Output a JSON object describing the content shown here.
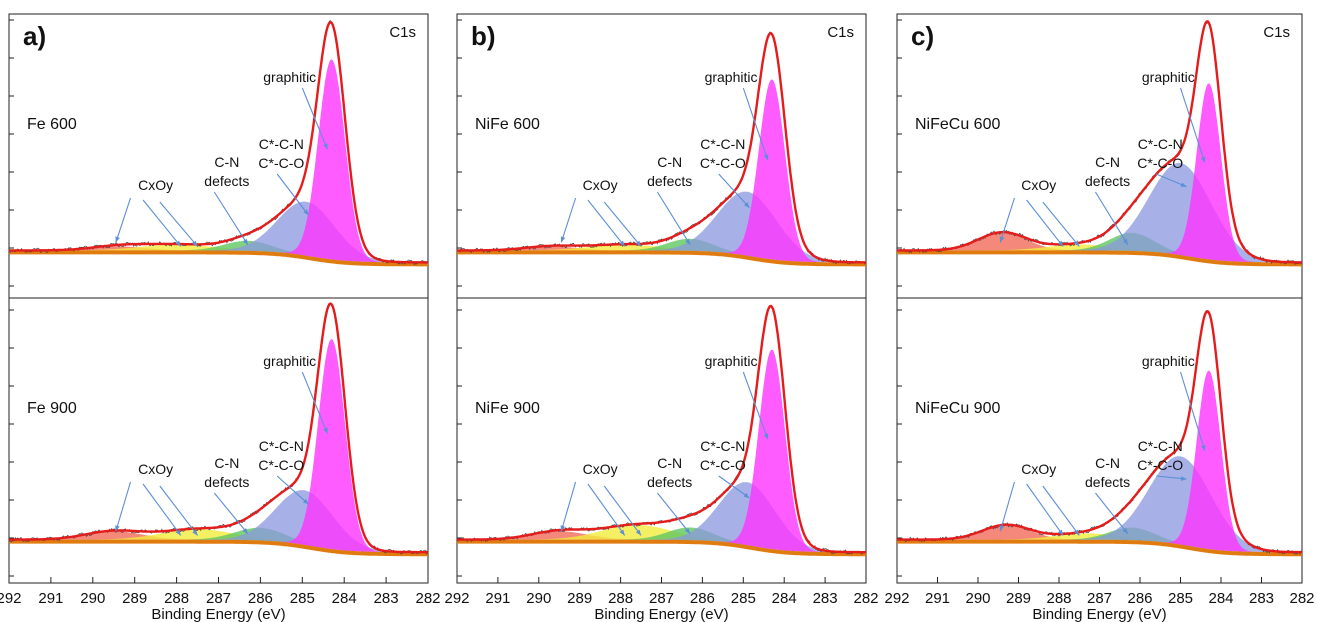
{
  "figure": {
    "axis": {
      "xlabel": "Binding Energy (eV)",
      "ticks": [
        "292",
        "291",
        "290",
        "289",
        "288",
        "287",
        "286",
        "285",
        "284",
        "283",
        "282"
      ],
      "xlim": [
        292,
        282
      ]
    },
    "colors": {
      "graphitic": "#ff33ff",
      "cc_co": "#8a97e0",
      "cn_defects": "#5fc75f",
      "cxoy_yellow": "#f2ec3c",
      "cxoy_red": "#f06a5a",
      "background": "#e07b10",
      "envelope": "#e41c1c",
      "raw": "#444444",
      "arrow": "#5b8fd6"
    },
    "annotations": {
      "region": "C1s",
      "graphitic": "graphitic",
      "cc_line1": "C*-C-N",
      "cc_line2": "C*-C-O",
      "cn_line1": "C-N",
      "cn_line2": "defects",
      "cxoy": "CxOy"
    },
    "panels": [
      {
        "letter": "a)",
        "top": "Fe 600",
        "bottom": "Fe 900"
      },
      {
        "letter": "b)",
        "top": "NiFe 600",
        "bottom": "NiFe 900"
      },
      {
        "letter": "c)",
        "top": "NiFeCu 600",
        "bottom": "NiFeCu 900"
      }
    ]
  },
  "chart_data": [
    {
      "type": "area",
      "title": "Fe 600",
      "x_unit": "eV",
      "components": [
        {
          "name": "graphitic",
          "center": 284.3,
          "fwhm": 0.75,
          "height": 1.0
        },
        {
          "name": "C*-C-N / C*-C-O",
          "center": 284.9,
          "fwhm": 1.6,
          "height": 0.27
        },
        {
          "name": "C-N defects",
          "center": 286.3,
          "fwhm": 1.3,
          "height": 0.05
        },
        {
          "name": "CxOy",
          "center": 288.0,
          "fwhm": 2.0,
          "height": 0.03
        },
        {
          "name": "CxOy",
          "center": 289.4,
          "fwhm": 1.5,
          "height": 0.02
        }
      ]
    },
    {
      "type": "area",
      "title": "Fe 900",
      "x_unit": "eV",
      "components": [
        {
          "name": "graphitic",
          "center": 284.3,
          "fwhm": 0.75,
          "height": 1.0
        },
        {
          "name": "C*-C-N / C*-C-O",
          "center": 284.95,
          "fwhm": 1.6,
          "height": 0.26
        },
        {
          "name": "C-N defects",
          "center": 286.0,
          "fwhm": 1.4,
          "height": 0.06
        },
        {
          "name": "CxOy",
          "center": 287.5,
          "fwhm": 2.0,
          "height": 0.05
        },
        {
          "name": "CxOy",
          "center": 289.5,
          "fwhm": 1.6,
          "height": 0.04
        }
      ]
    },
    {
      "type": "area",
      "title": "NiFe 600",
      "x_unit": "eV",
      "components": [
        {
          "name": "graphitic",
          "center": 284.3,
          "fwhm": 0.75,
          "height": 0.9
        },
        {
          "name": "C*-C-N / C*-C-O",
          "center": 284.9,
          "fwhm": 1.7,
          "height": 0.32
        },
        {
          "name": "C-N defects",
          "center": 286.3,
          "fwhm": 1.3,
          "height": 0.06
        },
        {
          "name": "CxOy",
          "center": 287.9,
          "fwhm": 2.0,
          "height": 0.03
        },
        {
          "name": "CxOy",
          "center": 289.7,
          "fwhm": 1.5,
          "height": 0.02
        }
      ]
    },
    {
      "type": "area",
      "title": "NiFe 900",
      "x_unit": "eV",
      "components": [
        {
          "name": "graphitic",
          "center": 284.3,
          "fwhm": 0.75,
          "height": 0.95
        },
        {
          "name": "C*-C-N / C*-C-O",
          "center": 284.9,
          "fwhm": 1.6,
          "height": 0.3
        },
        {
          "name": "C-N defects",
          "center": 286.3,
          "fwhm": 1.3,
          "height": 0.06
        },
        {
          "name": "CxOy",
          "center": 287.6,
          "fwhm": 2.0,
          "height": 0.07
        },
        {
          "name": "CxOy",
          "center": 289.5,
          "fwhm": 1.6,
          "height": 0.04
        }
      ]
    },
    {
      "type": "area",
      "title": "NiFeCu 600",
      "x_unit": "eV",
      "components": [
        {
          "name": "graphitic",
          "center": 284.3,
          "fwhm": 0.7,
          "height": 0.88
        },
        {
          "name": "C*-C-N / C*-C-O",
          "center": 285.0,
          "fwhm": 1.8,
          "height": 0.46
        },
        {
          "name": "C-N defects",
          "center": 286.2,
          "fwhm": 1.3,
          "height": 0.09
        },
        {
          "name": "CxOy",
          "center": 287.5,
          "fwhm": 1.8,
          "height": 0.03
        },
        {
          "name": "CxOy",
          "center": 289.4,
          "fwhm": 1.4,
          "height": 0.09
        }
      ]
    },
    {
      "type": "area",
      "title": "NiFeCu 900",
      "x_unit": "eV",
      "components": [
        {
          "name": "graphitic",
          "center": 284.3,
          "fwhm": 0.7,
          "height": 0.85
        },
        {
          "name": "C*-C-N / C*-C-O",
          "center": 285.0,
          "fwhm": 1.8,
          "height": 0.42
        },
        {
          "name": "C-N defects",
          "center": 286.2,
          "fwhm": 1.3,
          "height": 0.06
        },
        {
          "name": "CxOy",
          "center": 287.3,
          "fwhm": 1.8,
          "height": 0.03
        },
        {
          "name": "CxOy",
          "center": 289.3,
          "fwhm": 1.4,
          "height": 0.07
        }
      ]
    }
  ]
}
